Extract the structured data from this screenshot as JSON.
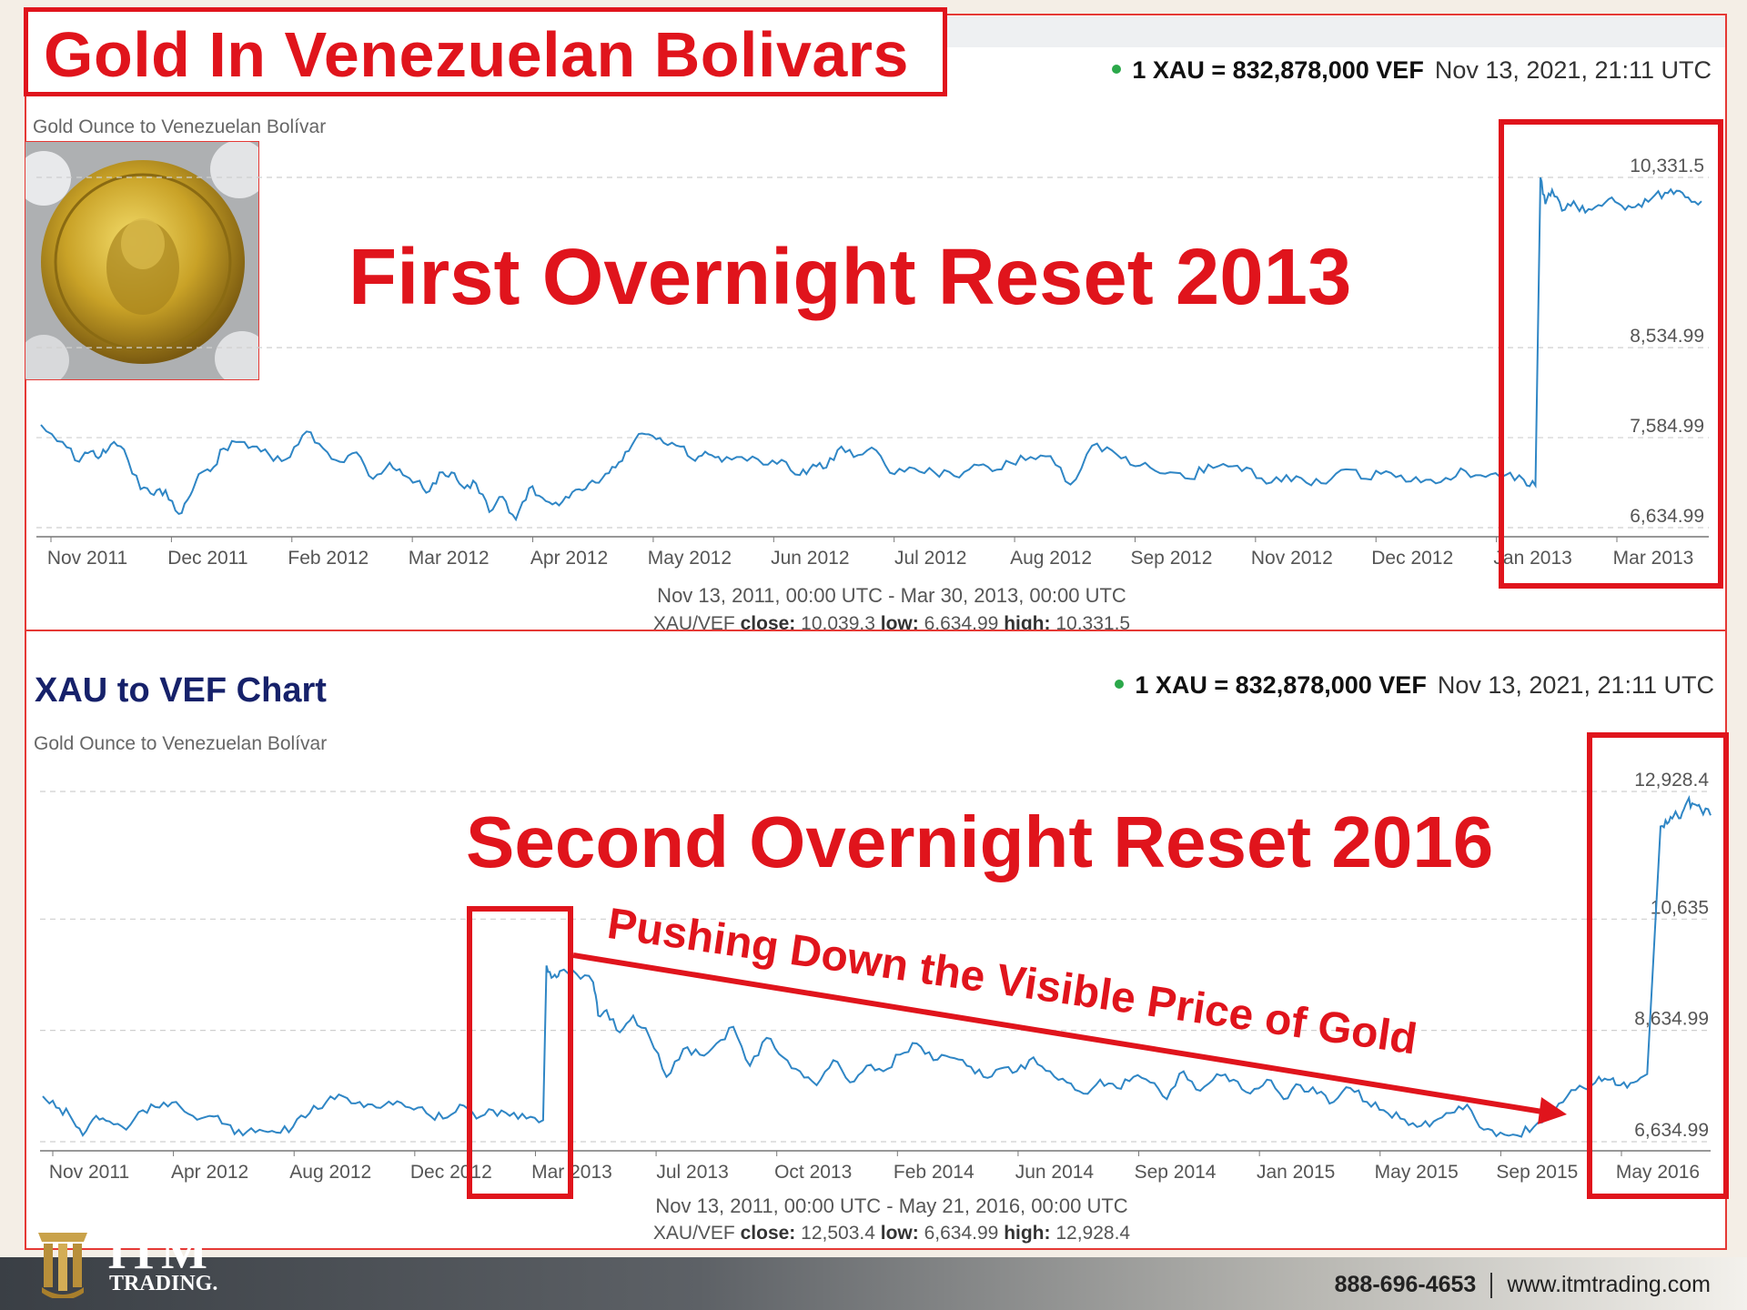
{
  "slide_title": "Gold In Venezuelan Bolivars",
  "annotations": {
    "reset1": "First Overnight Reset 2013",
    "reset2": "Second Overnight Reset 2016",
    "arrow_text": "Pushing Down the Visible Price of Gold"
  },
  "footer": {
    "logo_name": "ITM",
    "logo_sub": "TRADING.",
    "phone": "888-696-4653",
    "website": "www.itmtrading.com"
  },
  "colors": {
    "line": "#2f86c5",
    "highlight": "#e0141c",
    "live_dot": "#2ba84a",
    "title_navy": "#16216a"
  },
  "chart_data": [
    {
      "type": "line",
      "title": "",
      "subtitle": "Gold Ounce to Venezuelan Bolívar",
      "rate": {
        "label": "1 XAU = 832,878,000 VEF",
        "timestamp": "Nov 13, 2021, 21:11 UTC"
      },
      "x_tick_labels": [
        "Nov 2011",
        "Dec 2011",
        "Feb 2012",
        "Mar 2012",
        "Apr 2012",
        "May 2012",
        "Jun 2012",
        "Jul 2012",
        "Aug 2012",
        "Sep 2012",
        "Nov 2012",
        "Dec 2012",
        "Jan 2013",
        "Mar 2013"
      ],
      "y_tick_labels": [
        "10,331.5",
        "8,534.99",
        "7,584.99",
        "6,634.99"
      ],
      "range_text": "Nov 13, 2011, 00:00 UTC - Mar 30, 2013, 00:00 UTC",
      "stats": {
        "pair": "XAU/VEF",
        "close_label": "close:",
        "close": "10,039.3",
        "low_label": "low:",
        "low": "6,634.99",
        "high_label": "high:",
        "high": "10,331.5"
      },
      "ylim": [
        6634.99,
        10331.5
      ],
      "grid": true,
      "series": [
        {
          "x": [
            0,
            1.3,
            2.3,
            3,
            3.6,
            4.2,
            5,
            6,
            6.8,
            7.5,
            8.3,
            9,
            9.5,
            10.2,
            11,
            12,
            13,
            14,
            15,
            16,
            17,
            18,
            19,
            20,
            21,
            21.8,
            22.6,
            23.4,
            24.2,
            24.9,
            25.5,
            26.2,
            27,
            27.8,
            28.6,
            29.4,
            30.2,
            31,
            31.8,
            32.6,
            33.4,
            34.2,
            35,
            35.8,
            36.6,
            37.5,
            38.5,
            39.4,
            40.2,
            41,
            42.2,
            43.5,
            44.6,
            45.7,
            46.5,
            47.3,
            48.2,
            49.2,
            50.3,
            51.4,
            52.6,
            53.8,
            55,
            56.2,
            57.3,
            58.4,
            59.6,
            60.8,
            62,
            63.3,
            64.5,
            65.6,
            66.8,
            68,
            69.2,
            70.3,
            71.5,
            72.6,
            73.8,
            75,
            76.2,
            77.4,
            78.6,
            79.8,
            81,
            82.2,
            83.4,
            84.6,
            85.8,
            87,
            88.2,
            89.3,
            90,
            90.3,
            90.6,
            91,
            91.6,
            92.3,
            93,
            93.8,
            94.6,
            95.4,
            96.2,
            97,
            97.8,
            98.5,
            99.2,
            100
          ],
          "y": [
            7720,
            7540,
            7330,
            7440,
            7390,
            7510,
            7460,
            7040,
            6980,
            7030,
            6780,
            6980,
            7200,
            7230,
            7470,
            7540,
            7490,
            7340,
            7380,
            7650,
            7470,
            7330,
            7430,
            7150,
            7320,
            7190,
            7120,
            7020,
            7220,
            7210,
            7050,
            7100,
            6800,
            6960,
            6720,
            7050,
            6950,
            6900,
            6950,
            7030,
            7110,
            7210,
            7340,
            7570,
            7620,
            7530,
            7490,
            7340,
            7410,
            7330,
            7380,
            7300,
            7350,
            7190,
            7300,
            7270,
            7490,
            7400,
            7450,
            7200,
            7260,
            7220,
            7180,
            7300,
            7230,
            7320,
            7380,
            7390,
            7090,
            7500,
            7450,
            7300,
            7270,
            7220,
            7150,
            7300,
            7280,
            7270,
            7100,
            7190,
            7110,
            7100,
            7250,
            7150,
            7230,
            7120,
            7140,
            7160,
            7230,
            7170,
            7190,
            7140,
            7080,
            10330,
            10050,
            10200,
            9980,
            10080,
            9960,
            10040,
            10120,
            9990,
            10050,
            10110,
            10170,
            10190,
            10120,
            10080
          ]
        }
      ],
      "x_domain": [
        0,
        100
      ]
    },
    {
      "type": "line",
      "title": "XAU to VEF Chart",
      "subtitle": "Gold Ounce to Venezuelan Bolívar",
      "rate": {
        "label": "1 XAU = 832,878,000 VEF",
        "timestamp": "Nov 13, 2021, 21:11 UTC"
      },
      "x_tick_labels": [
        "Nov 2011",
        "Apr 2012",
        "Aug 2012",
        "Dec 2012",
        "Mar 2013",
        "Jul 2013",
        "Oct 2013",
        "Feb 2014",
        "Jun 2014",
        "Sep 2014",
        "Jan 2015",
        "May 2015",
        "Sep 2015",
        "May 2016"
      ],
      "y_tick_labels": [
        "12,928.4",
        "10,635",
        "8,634.99",
        "6,634.99"
      ],
      "range_text": "Nov 13, 2011, 00:00 UTC - May 21, 2016, 00:00 UTC",
      "stats": {
        "pair": "XAU/VEF",
        "close_label": "close:",
        "close": "12,503.4",
        "low_label": "low:",
        "low": "6,634.99",
        "high_label": "high:",
        "high": "12,928.4"
      },
      "ylim": [
        6634.99,
        12928.4
      ],
      "grid": true,
      "series": [
        {
          "x": [
            0,
            0.8,
            1.6,
            2.4,
            3.2,
            4,
            5,
            6,
            7,
            8,
            9,
            10,
            11,
            12,
            13,
            14,
            15,
            16,
            17,
            18,
            19,
            20,
            21,
            22,
            23,
            24,
            25,
            26,
            27,
            28,
            29,
            30,
            30.2,
            30.6,
            31,
            32,
            33,
            33.3,
            33.8,
            34.6,
            35.4,
            36.4,
            37.4,
            38.4,
            39.4,
            40.4,
            41.4,
            42.4,
            43.4,
            44.4,
            45.4,
            46.4,
            47.4,
            48.4,
            49.4,
            50.4,
            51.4,
            52.4,
            53.4,
            54.4,
            55.4,
            56.4,
            57.4,
            58.4,
            59.4,
            60.4,
            61.4,
            62.4,
            63.4,
            64.4,
            65.4,
            66.4,
            67.4,
            68.4,
            69.4,
            70.4,
            71.4,
            72.4,
            73.4,
            74.4,
            75.4,
            76.4,
            77.4,
            78.4,
            79.4,
            80.4,
            81.4,
            82.4,
            83.4,
            84.4,
            85.4,
            86.4,
            87.4,
            88.4,
            89.4,
            90.4,
            91.4,
            92.4,
            93.3,
            94,
            94.6,
            95.4,
            96.2,
            97,
            97.4,
            97.8,
            98.2,
            98.6,
            99,
            99.4,
            100
          ],
          "y": [
            7450,
            7250,
            7120,
            6750,
            7100,
            7000,
            6850,
            7200,
            7250,
            7350,
            7100,
            7100,
            6950,
            6750,
            6850,
            6800,
            6900,
            7150,
            7350,
            7450,
            7350,
            7250,
            7300,
            7250,
            7150,
            7050,
            7300,
            7050,
            7200,
            7100,
            7050,
            7020,
            9800,
            9600,
            9700,
            9650,
            9500,
            8900,
            9000,
            8600,
            8900,
            8500,
            7800,
            8300,
            8200,
            8400,
            8700,
            8000,
            8500,
            8150,
            7900,
            7650,
            8100,
            7700,
            8000,
            7900,
            8200,
            8400,
            8100,
            8150,
            8000,
            7800,
            7950,
            7900,
            8150,
            7900,
            7700,
            7500,
            7750,
            7600,
            7800,
            7700,
            7400,
            7900,
            7550,
            7850,
            7750,
            7500,
            7750,
            7400,
            7650,
            7500,
            7350,
            7600,
            7350,
            7200,
            7050,
            6900,
            7000,
            7150,
            7300,
            6850,
            6800,
            6750,
            6900,
            7150,
            7450,
            7600,
            7800,
            7750,
            7650,
            7700,
            7850,
            12300,
            12350,
            12500,
            12450,
            12750,
            12700,
            12620,
            12500
          ]
        }
      ],
      "x_domain": [
        0,
        100
      ]
    }
  ]
}
